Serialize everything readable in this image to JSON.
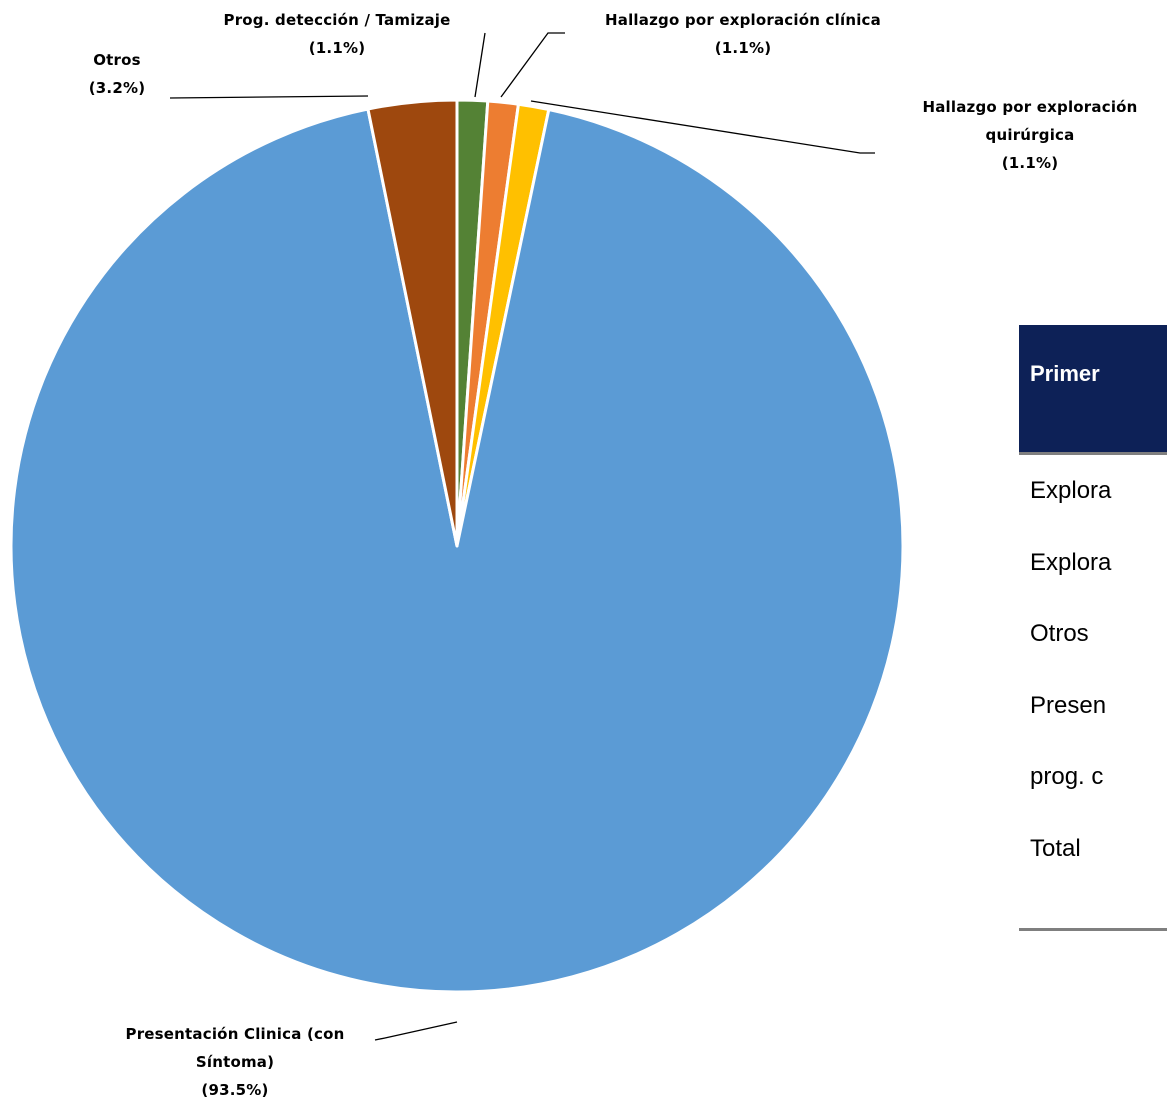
{
  "chart_data": {
    "type": "pie",
    "categories": [
      "Prog. detección / Tamizaje",
      "Hallazgo por exploración clínica",
      "Hallazgo por exploración quirúrgica",
      "Presentación Clinica (con Síntoma)",
      "Otros"
    ],
    "values": [
      1.1,
      1.1,
      1.1,
      93.5,
      3.2
    ],
    "value_labels": [
      "(1.1%)",
      "(1.1%)",
      "(1.1%)",
      "(93.5%)",
      "(3.2%)"
    ],
    "colors": [
      "#548235",
      "#ed7d31",
      "#ffc000",
      "#5b9bd5",
      "#9e480e"
    ]
  },
  "table": {
    "header": "Primer",
    "rows": [
      "Explora",
      "Explora",
      "Otros",
      "Presen",
      "prog. c",
      "Total"
    ]
  }
}
